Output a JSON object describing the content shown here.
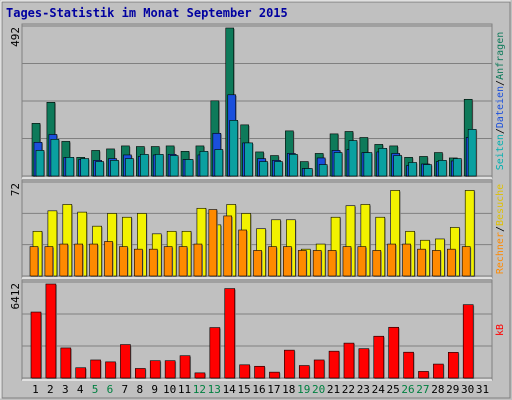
{
  "title": "Tages-Statistik im Monat September 2015",
  "colors": {
    "background": "#c0c0c0",
    "frame": "#ffffff",
    "title": "#0000a0",
    "grid": "#808080",
    "pages": "#0aa0a0",
    "hits": "#0e7a5a",
    "files": "#1a4fdc",
    "visits": "#ff8a00",
    "visitors": "#f2f200",
    "kb": "#ff0000",
    "weekend": "#008040",
    "text": "#000000"
  },
  "side_labels": {
    "top": [
      {
        "text": "Seiten",
        "color": "#00b0b0"
      },
      {
        "text": "/",
        "color": "#000000"
      },
      {
        "text": "Dateien",
        "color": "#1a4fdc"
      },
      {
        "text": "/",
        "color": "#000000"
      },
      {
        "text": "Anfragen",
        "color": "#0e7a5a"
      }
    ],
    "middle": [
      {
        "text": "Rechner",
        "color": "#ff8a00"
      },
      {
        "text": "/",
        "color": "#000000"
      },
      {
        "text": "Besuche",
        "color": "#e0c000"
      }
    ],
    "bottom": [
      {
        "text": "kB",
        "color": "#ff0000"
      }
    ]
  },
  "chart_data": [
    {
      "type": "bar",
      "panel": "top",
      "y_label": "492",
      "ylim": [
        0,
        492
      ],
      "categories": [
        "1",
        "2",
        "3",
        "4",
        "5",
        "6",
        "7",
        "8",
        "9",
        "10",
        "11",
        "12",
        "13",
        "14",
        "15",
        "16",
        "17",
        "18",
        "19",
        "20",
        "21",
        "22",
        "23",
        "24",
        "25",
        "26",
        "27",
        "28",
        "29",
        "30",
        "31"
      ],
      "weekend_days": [
        "5",
        "6",
        "12",
        "13",
        "19",
        "20",
        "26",
        "27"
      ],
      "series": [
        {
          "name": "Anfragen",
          "values": [
            175,
            245,
            115,
            62,
            85,
            90,
            100,
            98,
            98,
            100,
            82,
            100,
            250,
            492,
            170,
            80,
            68,
            150,
            48,
            75,
            140,
            148,
            128,
            105,
            100,
            62,
            65,
            78,
            60,
            255,
            0
          ]
        },
        {
          "name": "Dateien",
          "values": [
            112,
            138,
            62,
            55,
            52,
            58,
            70,
            65,
            70,
            72,
            55,
            70,
            142,
            270,
            110,
            58,
            52,
            75,
            25,
            60,
            85,
            88,
            78,
            80,
            75,
            35,
            40,
            48,
            50,
            128,
            0
          ]
        },
        {
          "name": "Seiten",
          "values": [
            85,
            122,
            62,
            58,
            48,
            52,
            58,
            72,
            72,
            68,
            55,
            82,
            88,
            185,
            110,
            48,
            48,
            72,
            25,
            38,
            78,
            118,
            78,
            92,
            68,
            45,
            38,
            52,
            58,
            155,
            0
          ]
        }
      ]
    },
    {
      "type": "bar",
      "panel": "middle",
      "y_label": "72",
      "ylim": [
        0,
        72
      ],
      "categories": [
        "1",
        "2",
        "3",
        "4",
        "5",
        "6",
        "7",
        "8",
        "9",
        "10",
        "11",
        "12",
        "13",
        "14",
        "15",
        "16",
        "17",
        "18",
        "19",
        "20",
        "21",
        "22",
        "23",
        "24",
        "25",
        "26",
        "27",
        "28",
        "29",
        "30",
        "31"
      ],
      "series": [
        {
          "name": "Besuche",
          "values": [
            35,
            51,
            56,
            50,
            39,
            49,
            46,
            49,
            33,
            35,
            35,
            53,
            40,
            56,
            49,
            37,
            44,
            44,
            21,
            25,
            46,
            55,
            56,
            46,
            67,
            35,
            28,
            29,
            38,
            67,
            0
          ]
        },
        {
          "name": "Rechner",
          "values": [
            23,
            23,
            25,
            25,
            25,
            27,
            23,
            21,
            21,
            23,
            23,
            25,
            52,
            47,
            36,
            20,
            23,
            23,
            20,
            20,
            20,
            23,
            23,
            20,
            25,
            25,
            21,
            20,
            21,
            23,
            0
          ]
        }
      ]
    },
    {
      "type": "bar",
      "panel": "bottom",
      "y_label": "6412",
      "ylim": [
        0,
        6412
      ],
      "categories": [
        "1",
        "2",
        "3",
        "4",
        "5",
        "6",
        "7",
        "8",
        "9",
        "10",
        "11",
        "12",
        "13",
        "14",
        "15",
        "16",
        "17",
        "18",
        "19",
        "20",
        "21",
        "22",
        "23",
        "24",
        "25",
        "26",
        "27",
        "28",
        "29",
        "30",
        "31"
      ],
      "series": [
        {
          "name": "kB",
          "values": [
            4500,
            6412,
            2050,
            700,
            1230,
            1100,
            2280,
            650,
            1180,
            1180,
            1520,
            350,
            3440,
            6100,
            900,
            800,
            400,
            1900,
            850,
            1230,
            1830,
            2380,
            2000,
            2850,
            3460,
            1760,
            450,
            950,
            1750,
            5000,
            0
          ]
        }
      ]
    }
  ]
}
